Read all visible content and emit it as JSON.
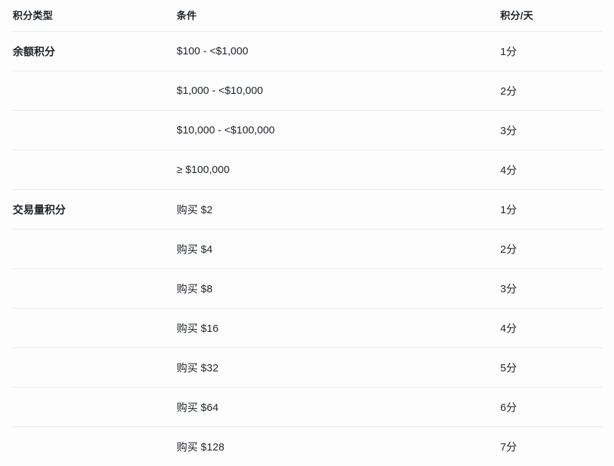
{
  "colors": {
    "background": "#fdfdfd",
    "text": "#1e2329",
    "divider": "#eaecef"
  },
  "table": {
    "columns": [
      {
        "label": "积分类型"
      },
      {
        "label": "条件"
      },
      {
        "label": "积分/天"
      }
    ],
    "rows": [
      {
        "type": "余额积分",
        "condition": "$100 - <$1,000",
        "points": "1分"
      },
      {
        "type": "",
        "condition": "$1,000 - <$10,000",
        "points": "2分"
      },
      {
        "type": "",
        "condition": "$10,000 - <$100,000",
        "points": "3分"
      },
      {
        "type": "",
        "condition": "≥ $100,000",
        "points": "4分"
      },
      {
        "type": "交易量积分",
        "condition": "购买 $2",
        "points": "1分"
      },
      {
        "type": "",
        "condition": "购买 $4",
        "points": "2分"
      },
      {
        "type": "",
        "condition": "购买 $8",
        "points": "3分"
      },
      {
        "type": "",
        "condition": "购买 $16",
        "points": "4分"
      },
      {
        "type": "",
        "condition": "购买 $32",
        "points": "5分"
      },
      {
        "type": "",
        "condition": "购买 $64",
        "points": "6分"
      },
      {
        "type": "",
        "condition": "购买 $128",
        "points": "7分"
      }
    ]
  }
}
